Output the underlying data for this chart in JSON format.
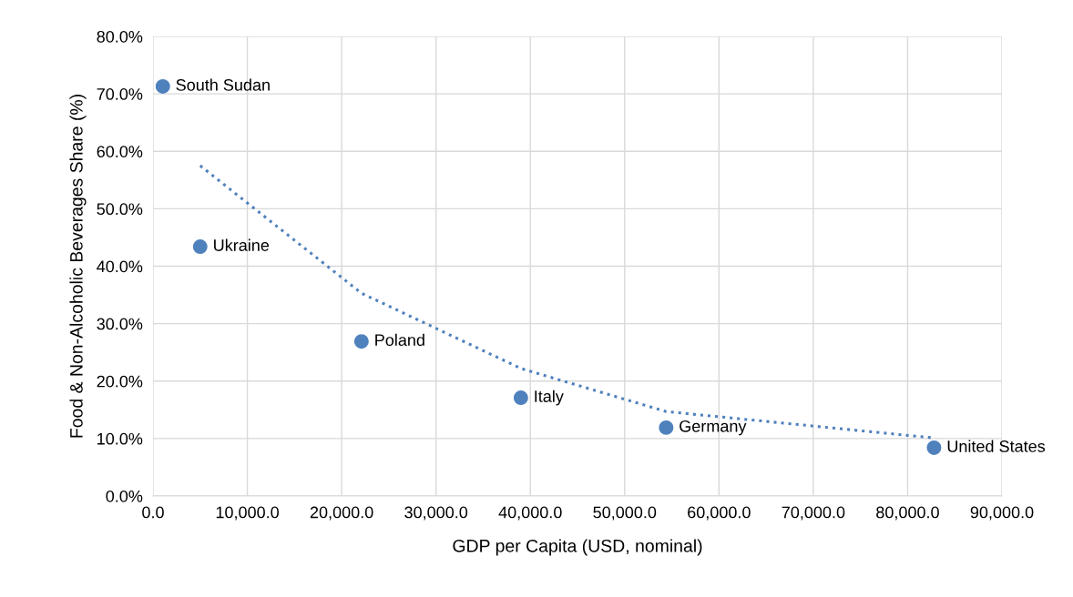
{
  "chart_data": {
    "type": "scatter",
    "xlabel": "GDP per Capita (USD, nominal)",
    "ylabel": "Food & Non-Alcoholic Beverages Share (%)",
    "series": [
      {
        "color": "#4f81bd",
        "marker": "circle",
        "x": [
          1040,
          5000,
          22100,
          39000,
          54400,
          82800
        ],
        "values": [
          71.3,
          43.4,
          26.9,
          17.1,
          11.9,
          8.4
        ]
      },
      {
        "type": "line",
        "color": "#4f81bd",
        "line_style": "dotted",
        "x": [
          5000,
          22100,
          39000,
          54400,
          82800
        ],
        "values": [
          57.5,
          35.3,
          22.2,
          14.7,
          10.1
        ]
      }
    ],
    "annotations": [
      {
        "text": "South Sudan",
        "x": 1040,
        "y": 71.3
      },
      {
        "text": "Ukraine",
        "x": 5000,
        "y": 43.4
      },
      {
        "text": "Poland",
        "x": 22100,
        "y": 26.9
      },
      {
        "text": "Italy",
        "x": 39000,
        "y": 17.1
      },
      {
        "text": "Germany",
        "x": 54400,
        "y": 11.9
      },
      {
        "text": "United States",
        "x": 82800,
        "y": 8.4
      }
    ],
    "xlim": [
      0,
      90000
    ],
    "xticks": [
      {
        "value": 0,
        "label": "0.0"
      },
      {
        "value": 10000,
        "label": "10,000.0"
      },
      {
        "value": 20000,
        "label": "20,000.0"
      },
      {
        "value": 30000,
        "label": "30,000.0"
      },
      {
        "value": 40000,
        "label": "40,000.0"
      },
      {
        "value": 50000,
        "label": "50,000.0"
      },
      {
        "value": 60000,
        "label": "60,000.0"
      },
      {
        "value": 70000,
        "label": "70,000.0"
      },
      {
        "value": 80000,
        "label": "80,000.0"
      },
      {
        "value": 90000,
        "label": "90,000.0"
      }
    ],
    "ylim": [
      0,
      80
    ],
    "yticks": [
      {
        "value": 0,
        "label": "0.0%"
      },
      {
        "value": 10,
        "label": "10.0%"
      },
      {
        "value": 20,
        "label": "20.0%"
      },
      {
        "value": 30,
        "label": "30.0%"
      },
      {
        "value": 40,
        "label": "40.0%"
      },
      {
        "value": 50,
        "label": "50.0%"
      },
      {
        "value": 60,
        "label": "60.0%"
      },
      {
        "value": 70,
        "label": "70.0%"
      },
      {
        "value": 80,
        "label": "80.0%"
      }
    ],
    "grid": true,
    "legend": false
  }
}
